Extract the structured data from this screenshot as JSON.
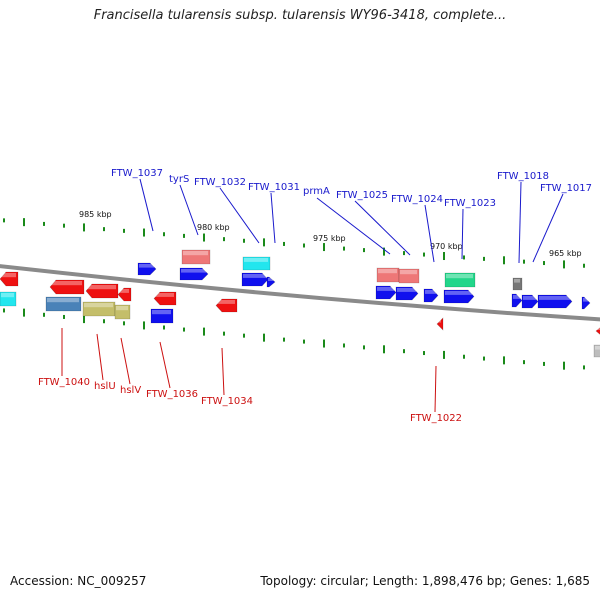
{
  "title": "Francisella tularensis subsp. tularensis WY96-3418, complete...",
  "footer": {
    "accession": "Accession: NC_009257",
    "summary": "Topology: circular; Length: 1,898,476 bp; Genes: 1,685"
  },
  "colors": {
    "forward_label": "#1a1acc",
    "reverse_label": "#cc1111",
    "blue": "#1010ee",
    "red": "#ee1111",
    "salmon": "#ee7777",
    "cyan": "#22e6ee",
    "teal": "#22d68a",
    "steel": "#4a82b8",
    "olive": "#c4be6a",
    "gray": "#777777",
    "tick": "#1a8a1a",
    "backbone": "#8a8a8a"
  },
  "kbp_labels": [
    "985 kbp",
    "980 kbp",
    "975 kbp",
    "970 kbp",
    "965 kbp"
  ],
  "forward_labels": [
    "FTW_1037",
    "tyrS",
    "FTW_1032",
    "FTW_1031",
    "prmA",
    "FTW_1025",
    "FTW_1024",
    "FTW_1023",
    "FTW_1018",
    "FTW_1017"
  ],
  "reverse_labels": [
    "FTW_1040",
    "hslU",
    "hslV",
    "FTW_1036",
    "FTW_1034",
    "FTW_1022"
  ]
}
